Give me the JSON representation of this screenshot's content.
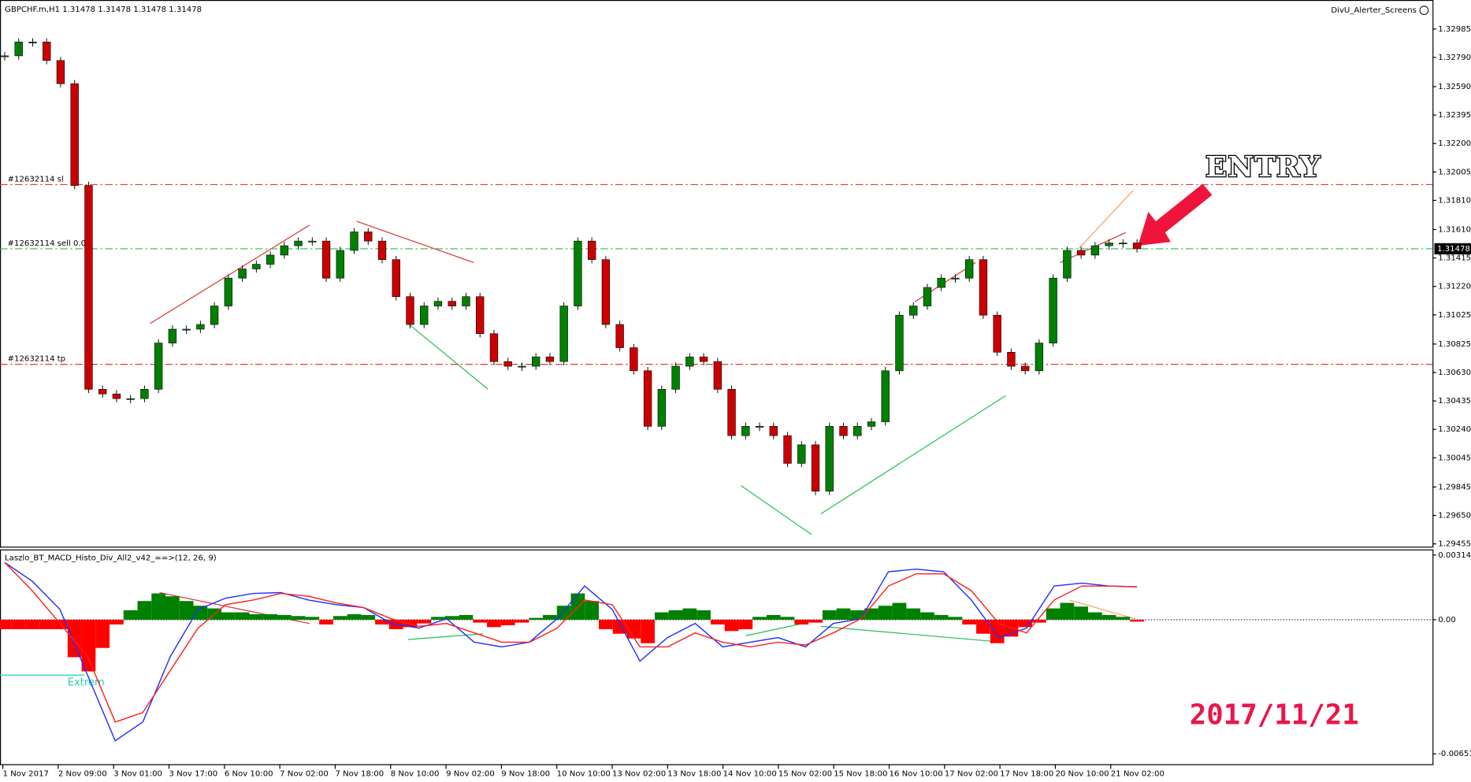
{
  "chart_data": [
    {
      "type": "candlestick",
      "title": "GBPCHF.m,H1  1.31478 1.31478 1.31478 1.31478",
      "corner_label": "DivU_Alerter_Screens",
      "closes": [
        1.32801,
        1.32896,
        1.32896,
        1.32769,
        1.3261,
        1.31912,
        1.30515,
        1.30483,
        1.30451,
        1.30451,
        1.30515,
        1.30832,
        1.30927,
        1.30927,
        1.30959,
        1.31086,
        1.31277,
        1.3134,
        1.31372,
        1.31435,
        1.31499,
        1.31531,
        1.31531,
        1.31277,
        1.31467,
        1.31594,
        1.31531,
        1.31404,
        1.3115,
        1.30959,
        1.31086,
        1.31118,
        1.31086,
        1.3115,
        1.30896,
        1.30705,
        1.30673,
        1.30673,
        1.30737,
        1.30705,
        1.31086,
        1.31531,
        1.31404,
        1.30959,
        1.308,
        1.30642,
        1.30261,
        1.30515,
        1.30673,
        1.30737,
        1.30705,
        1.30515,
        1.30197,
        1.30261,
        1.30261,
        1.30197,
        1.30007,
        1.30134,
        1.29816,
        1.30261,
        1.30197,
        1.30261,
        1.30292,
        1.30642,
        1.31023,
        1.31086,
        1.31213,
        1.31277,
        1.31277,
        1.31404,
        1.31023,
        1.30769,
        1.30673,
        1.30642,
        1.30832,
        1.31277,
        1.31467,
        1.31435,
        1.31499,
        1.31518,
        1.31518,
        1.31478
      ],
      "up_color": "#008000",
      "down_color": "#cc0000",
      "ylim": [
        1.29436,
        1.33171
      ],
      "yticks": [
        {
          "value": 1.32985,
          "label": "1.32985"
        },
        {
          "value": 1.3279,
          "label": "1.32790"
        },
        {
          "value": 1.3259,
          "label": "1.32590"
        },
        {
          "value": 1.32395,
          "label": "1.32395"
        },
        {
          "value": 1.322,
          "label": "1.32200"
        },
        {
          "value": 1.32005,
          "label": "1.32005"
        },
        {
          "value": 1.3181,
          "label": "1.31810"
        },
        {
          "value": 1.3161,
          "label": "1.31610"
        },
        {
          "value": 1.31415,
          "label": "1.31415"
        },
        {
          "value": 1.3122,
          "label": "1.31220"
        },
        {
          "value": 1.31025,
          "label": "1.31025"
        },
        {
          "value": 1.30825,
          "label": "1.30825"
        },
        {
          "value": 1.3063,
          "label": "1.30630"
        },
        {
          "value": 1.30435,
          "label": "1.30435"
        },
        {
          "value": 1.3024,
          "label": "1.30240"
        },
        {
          "value": 1.30045,
          "label": "1.30045"
        },
        {
          "value": 1.29845,
          "label": "1.29845"
        },
        {
          "value": 1.2965,
          "label": "1.29650"
        },
        {
          "value": 1.29455,
          "label": "1.29455"
        }
      ],
      "x_labels": [
        "1 Nov 2017",
        "2 Nov 09:00",
        "3 Nov 01:00",
        "3 Nov 17:00",
        "6 Nov 10:00",
        "7 Nov 02:00",
        "7 Nov 18:00",
        "8 Nov 10:00",
        "9 Nov 02:00",
        "9 Nov 18:00",
        "10 Nov 10:00",
        "13 Nov 02:00",
        "13 Nov 18:00",
        "14 Nov 10:00",
        "15 Nov 02:00",
        "15 Nov 18:00",
        "16 Nov 10:00",
        "17 Nov 02:00",
        "17 Nov 18:00",
        "20 Nov 10:00",
        "21 Nov 02:00"
      ],
      "orders": [
        {
          "label": "#12632114 sl",
          "price": 1.31918,
          "color": "#e03a3a"
        },
        {
          "label": "#12632114 sell 0.05",
          "price": 1.31478,
          "color": "#20c050"
        },
        {
          "label": "#12632114 tp",
          "price": 1.30686,
          "color": "#e03a3a"
        }
      ],
      "current_price": {
        "value": 1.31478,
        "label": "1.31478"
      },
      "entry_label": "ENTRY",
      "date_label": "2017/11/21"
    },
    {
      "type": "macd",
      "title": "Laszlo_BT_MACD_Histo_Div_All2_v42_==>(12, 26, 9)",
      "histogram": [
        -0.00046,
        -0.00046,
        -0.00046,
        -0.00046,
        -0.00046,
        -0.00182,
        -0.00251,
        -0.00137,
        -0.00023,
        0.00046,
        0.00091,
        0.00128,
        0.00114,
        0.00091,
        0.00068,
        0.00055,
        0.00036,
        0.00036,
        0.00027,
        0.00027,
        0.00023,
        0.00018,
        0.00014,
        -0.00023,
        0.00018,
        0.00027,
        0.00023,
        -0.00023,
        -0.00046,
        -0.00036,
        -0.00018,
        0.00014,
        0.00018,
        0.00023,
        -0.00014,
        -0.00036,
        -0.00027,
        -0.00014,
        9e-05,
        0.00023,
        0.00068,
        0.00128,
        0.00091,
        -0.00046,
        -0.00068,
        -0.00091,
        -0.00114,
        0.00036,
        0.00046,
        0.00055,
        0.00046,
        -0.00023,
        -0.00055,
        -0.00046,
        0.00014,
        0.00023,
        0.00014,
        -0.00023,
        -0.00014,
        0.00046,
        0.00055,
        0.00046,
        0.00055,
        0.00068,
        0.00082,
        0.00055,
        0.00036,
        0.00023,
        0.00014,
        -0.00023,
        -0.00068,
        -0.00114,
        -0.00082,
        -0.00036,
        -0.00014,
        0.00055,
        0.00082,
        0.00064,
        0.00036,
        0.00023,
        0.00014,
        -9e-05
      ],
      "pos_color": "#008000",
      "neg_color": "#ff0000",
      "lines": [
        {
          "color": "#2030ff",
          "values": [
            0.00278,
            0.00187,
            0.0005,
            -0.00269,
            -0.00588,
            -0.00497,
            -0.00178,
            0.0005,
            0.00105,
            0.00128,
            0.00132,
            0.00096,
            0.00073,
            0.00059,
            -0.00018,
            -0.00041,
            5e-05,
            -0.00109,
            -0.00132,
            -0.00109,
            5e-05,
            0.00164,
            0.0005,
            -0.00201,
            -0.00087,
            -0.00018,
            -0.00132,
            -0.00109,
            -0.00087,
            -0.00132,
            -0.00018,
            5e-05,
            0.00233,
            0.00246,
            0.00233,
            0.00096,
            -0.00087,
            -0.00041,
            0.00164,
            0.00178,
            0.00164,
            0.0016
          ]
        },
        {
          "color": "#ff2020",
          "values": [
            0.00278,
            0.00141,
            -0.00018,
            -0.00178,
            -0.00497,
            -0.00451,
            -0.00246,
            -0.00041,
            0.00073,
            0.00096,
            0.00128,
            0.00114,
            0.00082,
            0.00059,
            5e-05,
            -0.00032,
            -0.00018,
            -0.00064,
            -0.00109,
            -0.00109,
            -0.00041,
            0.00096,
            0.00073,
            -0.00132,
            -0.00132,
            -0.00064,
            -0.00109,
            -0.00132,
            -0.00109,
            -0.00123,
            -0.00064,
            5e-05,
            0.00164,
            0.00223,
            0.00223,
            0.00141,
            -0.00018,
            -0.00064,
            0.00096,
            0.00164,
            0.00164,
            0.0016
          ]
        }
      ],
      "ylim": [
        -0.00702,
        0.00337
      ],
      "yticks": [
        0.003144,
        {
          "value": 0,
          "label": "0.00"
        },
        -0.006517
      ],
      "annotation": "Extrem"
    }
  ]
}
